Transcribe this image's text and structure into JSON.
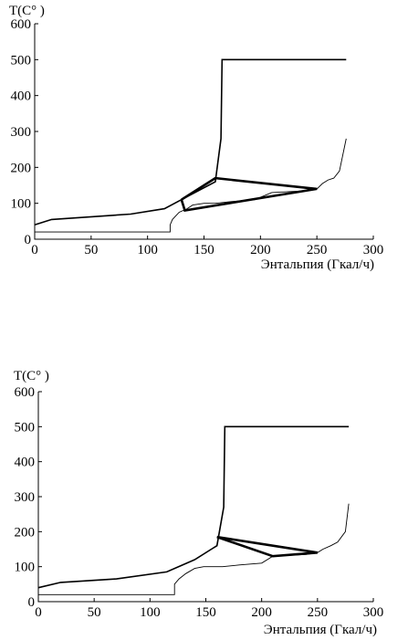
{
  "chart_data": [
    {
      "type": "line",
      "ylabel": "T(C° )",
      "xlabel": "Энтальпия (Гкал/ч)",
      "xlim": [
        0,
        300
      ],
      "ylim": [
        0,
        600
      ],
      "xticks": [
        0,
        50,
        100,
        150,
        200,
        250,
        300
      ],
      "yticks": [
        0,
        100,
        200,
        300,
        400,
        500,
        600
      ],
      "grid": false,
      "series": [
        {
          "style": "medium",
          "x": [
            0,
            15,
            85,
            115,
            130,
            160,
            165,
            166,
            276
          ],
          "y": [
            40,
            55,
            70,
            85,
            110,
            160,
            280,
            500,
            500
          ]
        },
        {
          "style": "thin",
          "x": [
            0,
            120,
            120,
            122,
            128,
            135,
            140,
            150,
            160,
            175,
            195,
            210,
            240,
            250,
            255,
            260,
            265,
            270,
            276
          ],
          "y": [
            20,
            20,
            40,
            55,
            75,
            85,
            95,
            100,
            100,
            105,
            110,
            130,
            135,
            140,
            155,
            165,
            170,
            190,
            280
          ]
        },
        {
          "style": "bold",
          "x": [
            130,
            160,
            250,
            133,
            130
          ],
          "y": [
            110,
            170,
            140,
            80,
            110
          ]
        }
      ]
    },
    {
      "type": "line",
      "ylabel": "T(C° )",
      "xlabel": "Энтальпия (Гкал/ч)",
      "xlim": [
        0,
        300
      ],
      "ylim": [
        0,
        600
      ],
      "xticks": [
        0,
        50,
        100,
        150,
        200,
        250,
        300
      ],
      "yticks": [
        0,
        100,
        200,
        300,
        400,
        500,
        600
      ],
      "grid": false,
      "series": [
        {
          "style": "medium",
          "x": [
            0,
            20,
            70,
            115,
            140,
            155,
            160,
            166,
            167,
            278
          ],
          "y": [
            40,
            55,
            65,
            85,
            120,
            150,
            160,
            270,
            500,
            500
          ]
        },
        {
          "style": "thin",
          "x": [
            0,
            122,
            122,
            126,
            132,
            140,
            148,
            165,
            180,
            200,
            210,
            240,
            250,
            255,
            262,
            268,
            275,
            278
          ],
          "y": [
            20,
            20,
            50,
            65,
            80,
            95,
            100,
            100,
            105,
            110,
            130,
            135,
            140,
            150,
            160,
            170,
            200,
            280
          ]
        },
        {
          "style": "bold",
          "x": [
            160,
            210,
            250,
            160
          ],
          "y": [
            185,
            130,
            140,
            185
          ]
        }
      ]
    }
  ]
}
